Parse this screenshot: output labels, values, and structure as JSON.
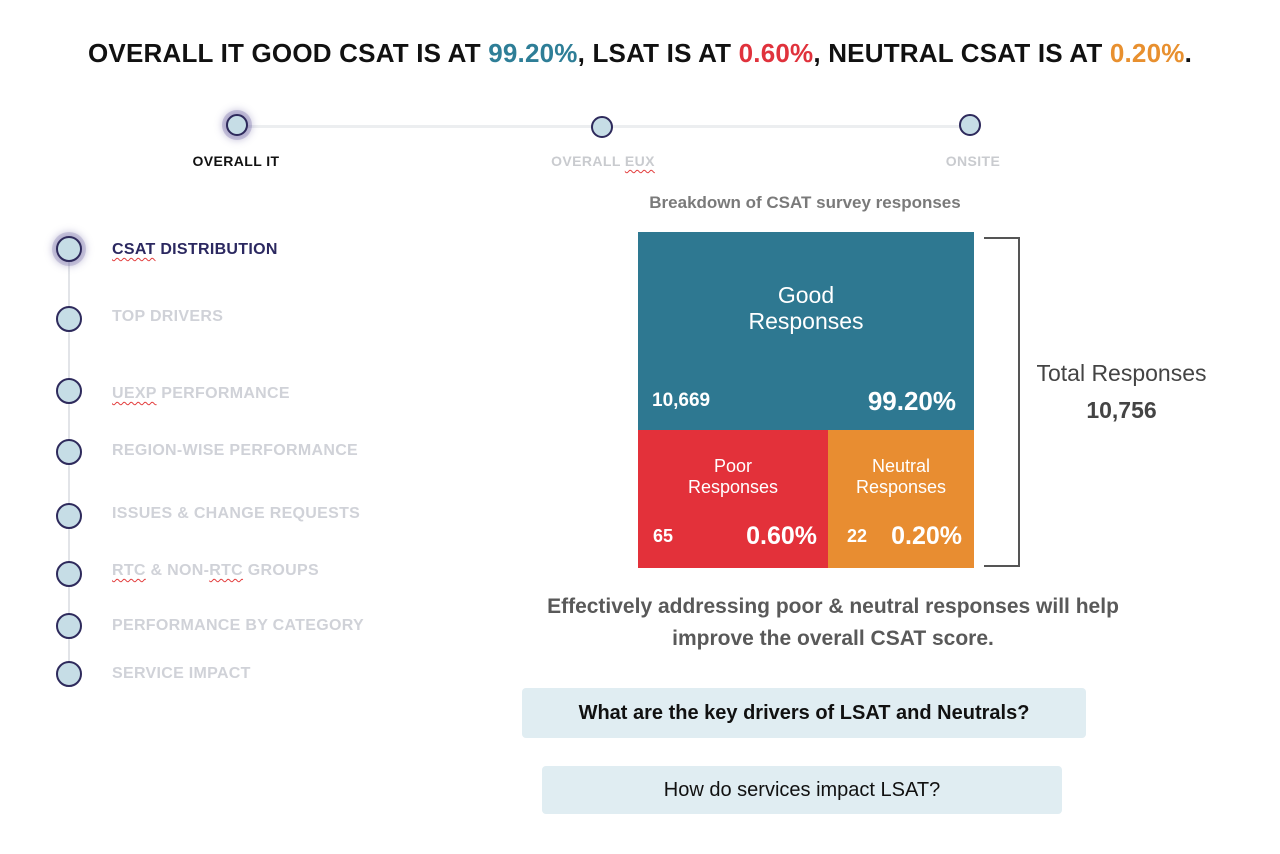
{
  "headline": {
    "part1": "OVERALL IT GOOD CSAT IS AT ",
    "good_pct": "99.20%",
    "part2": ", LSAT IS AT ",
    "lsat_pct": "0.60%",
    "part3": ", NEUTRAL CSAT IS AT ",
    "neutral_pct": "0.20%",
    "part4": ".",
    "colors": {
      "good": "#2e7e97",
      "lsat": "#e0323c",
      "neutral": "#e8902f"
    }
  },
  "stepper": {
    "steps": [
      {
        "label": "OVERALL IT",
        "active": true
      },
      {
        "label_a": "OVERALL ",
        "label_b": "EUX",
        "active": false
      },
      {
        "label": "ONSITE",
        "active": false
      }
    ]
  },
  "nav": {
    "items": [
      {
        "label_a": "CSAT",
        "label_b": " DISTRIBUTION",
        "active": true
      },
      {
        "label": "TOP DRIVERS",
        "active": false
      },
      {
        "label_a": "UEXP",
        "label_b": " PERFORMANCE",
        "active": false
      },
      {
        "label": "REGION-WISE PERFORMANCE",
        "active": false
      },
      {
        "label": "ISSUES & CHANGE REQUESTS",
        "active": false
      },
      {
        "label_a": "RTC",
        "label_b": " & NON-",
        "label_c": "RTC",
        "label_d": " GROUPS",
        "active": false
      },
      {
        "label": "PERFORMANCE BY CATEGORY",
        "active": false
      },
      {
        "label": "SERVICE IMPACT",
        "active": false
      }
    ]
  },
  "breakdown": {
    "title": "Breakdown of CSAT survey responses",
    "good": {
      "name_line1": "Good",
      "name_line2": "Responses",
      "count": "10,669",
      "pct": "99.20%",
      "color": "#2e7891"
    },
    "poor": {
      "name_line1": "Poor",
      "name_line2": "Responses",
      "count": "65",
      "pct": "0.60%",
      "color": "#e3313a"
    },
    "neutral": {
      "name_line1": "Neutral",
      "name_line2": "Responses",
      "count": "22",
      "pct": "0.20%",
      "color": "#e88d31"
    },
    "total_label": "Total Responses",
    "total_value": "10,756"
  },
  "insight": {
    "line1": "Effectively addressing poor & neutral responses will help",
    "line2": "improve the overall CSAT score."
  },
  "questions": {
    "q1": "What are the key drivers of LSAT and Neutrals?",
    "q2": "How do services impact LSAT?"
  }
}
